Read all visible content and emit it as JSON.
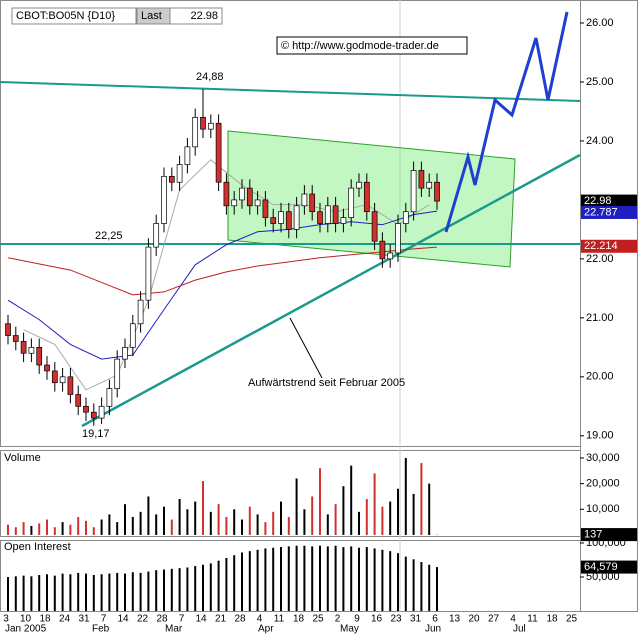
{
  "chart_data": [
    {
      "type": "candlestick",
      "symbol": "CBOT:BO05N {D10}",
      "last_label": "Last",
      "last_value": 22.98,
      "source": "© http://www.godmode-trader.de",
      "annotations": [
        "24,88",
        "22,25",
        "19,17",
        "Aufwärtstrend seit Februar 2005"
      ],
      "open": [
        20.9,
        20.7,
        20.6,
        20.4,
        20.5,
        20.2,
        20.1,
        19.9,
        20.0,
        19.7,
        19.5,
        19.4,
        19.3,
        19.5,
        19.8,
        20.3,
        20.5,
        20.9,
        21.3,
        22.2,
        22.6,
        23.4,
        23.3,
        23.6,
        23.9,
        24.4,
        24.2,
        24.3,
        23.3,
        22.9,
        23.0,
        23.2,
        22.9,
        23.0,
        22.7,
        22.6,
        22.8,
        22.5,
        22.9,
        23.1,
        22.8,
        22.6,
        22.9,
        22.6,
        22.7,
        23.2,
        23.3,
        22.8,
        22.3,
        22.0,
        22.1,
        22.6,
        22.8,
        23.5,
        23.2,
        23.3
      ],
      "high": [
        21.05,
        20.85,
        20.75,
        20.65,
        20.65,
        20.35,
        20.25,
        20.15,
        20.15,
        19.85,
        19.65,
        19.55,
        19.65,
        19.95,
        20.45,
        20.65,
        21.05,
        21.45,
        22.35,
        22.75,
        23.55,
        23.55,
        23.75,
        24.05,
        24.55,
        24.88,
        24.45,
        24.45,
        23.45,
        23.15,
        23.35,
        23.35,
        23.15,
        23.15,
        22.85,
        22.95,
        22.95,
        23.05,
        23.25,
        23.25,
        22.95,
        23.05,
        23.05,
        22.85,
        23.35,
        23.45,
        23.45,
        22.95,
        22.45,
        22.25,
        22.75,
        22.95,
        23.65,
        23.65,
        23.45,
        23.45
      ],
      "low": [
        20.55,
        20.45,
        20.25,
        20.25,
        20.05,
        19.95,
        19.75,
        19.75,
        19.55,
        19.35,
        19.25,
        19.17,
        19.2,
        19.35,
        19.65,
        20.15,
        20.35,
        20.75,
        21.15,
        22.05,
        22.45,
        23.15,
        23.15,
        23.45,
        23.75,
        24.05,
        24.05,
        23.15,
        22.75,
        22.75,
        22.85,
        22.75,
        22.75,
        22.55,
        22.45,
        22.45,
        22.35,
        22.35,
        22.75,
        22.65,
        22.45,
        22.45,
        22.45,
        22.45,
        22.55,
        23.05,
        22.65,
        22.15,
        21.85,
        21.85,
        21.95,
        22.45,
        22.65,
        23.05,
        23.05,
        22.83
      ],
      "close": [
        20.7,
        20.6,
        20.4,
        20.5,
        20.2,
        20.1,
        19.9,
        20.0,
        19.7,
        19.5,
        19.4,
        19.3,
        19.5,
        19.8,
        20.3,
        20.5,
        20.9,
        21.3,
        22.2,
        22.6,
        23.4,
        23.3,
        23.6,
        23.9,
        24.4,
        24.2,
        24.3,
        23.3,
        22.9,
        23.0,
        23.2,
        22.9,
        23.0,
        22.7,
        22.6,
        22.8,
        22.5,
        22.9,
        23.1,
        22.8,
        22.6,
        22.9,
        22.6,
        22.7,
        23.2,
        23.3,
        22.8,
        22.3,
        22.0,
        22.1,
        22.6,
        22.8,
        23.5,
        23.2,
        23.3,
        22.98
      ],
      "up_color": "#ffffff",
      "down_color": "#d03030",
      "moving_averages": [
        {
          "color": "#aaaaaa",
          "x": [
            2,
            6,
            10,
            14,
            18,
            22,
            26,
            30,
            34,
            38,
            42,
            46,
            50,
            54
          ],
          "values": [
            20.8,
            20.55,
            19.78,
            20.03,
            21.3,
            23.17,
            23.68,
            23.25,
            22.92,
            22.92,
            22.8,
            22.92,
            22.58,
            22.92
          ]
        },
        {
          "color": "#2020c0",
          "x": [
            0,
            4,
            8,
            12,
            16,
            20,
            24,
            28,
            32,
            36,
            40,
            44,
            48,
            52,
            55
          ],
          "values": [
            21.3,
            20.97,
            20.55,
            20.3,
            20.37,
            21.14,
            21.9,
            22.24,
            22.46,
            22.5,
            22.58,
            22.63,
            22.58,
            22.75,
            22.81
          ]
        },
        {
          "color": "#c02020",
          "x": [
            0,
            8,
            12,
            16,
            20,
            24,
            28,
            32,
            36,
            40,
            44,
            48,
            52,
            55
          ],
          "values": [
            22.02,
            21.81,
            21.6,
            21.39,
            21.44,
            21.64,
            21.78,
            21.88,
            21.95,
            22.02,
            22.07,
            22.12,
            22.17,
            22.2
          ]
        }
      ],
      "value_boxes": [
        {
          "value": 22.98,
          "color": "#000000"
        },
        {
          "value": 22.787,
          "color": "#2020c0"
        },
        {
          "value": 22.214,
          "color": "#c02020"
        }
      ],
      "ylim": [
        18.81,
        26.39
      ],
      "yticks": [
        {
          "value": 26,
          "label": "26.00"
        },
        {
          "value": 25,
          "label": "25.00"
        },
        {
          "value": 24,
          "label": "24.00"
        },
        {
          "value": 22,
          "label": "22.00"
        },
        {
          "value": 21,
          "label": "21.00"
        },
        {
          "value": 20,
          "label": "20.00"
        },
        {
          "value": 19,
          "label": "19.00"
        }
      ]
    },
    {
      "type": "bar",
      "title": "Volume",
      "values": [
        4000,
        3000,
        5000,
        3500,
        4500,
        6000,
        3000,
        5000,
        4000,
        7000,
        5500,
        3000,
        6000,
        8000,
        5000,
        12000,
        7000,
        9000,
        15000,
        8000,
        11000,
        6000,
        14000,
        10000,
        13000,
        21000,
        9000,
        12000,
        7000,
        10000,
        6000,
        11000,
        8000,
        5000,
        9000,
        13000,
        7000,
        22000,
        10000,
        15000,
        26000,
        8000,
        12000,
        19000,
        27000,
        9000,
        14000,
        24000,
        11000,
        13000,
        18000,
        30000,
        16000,
        28000,
        20000,
        137
      ],
      "value_boxes": [
        {
          "value": 137,
          "color": "#000000"
        }
      ],
      "ylim": [
        -800,
        33100
      ],
      "yticks": [
        {
          "value": 30000,
          "label": "30,000"
        },
        {
          "value": 20000,
          "label": "20,000"
        },
        {
          "value": 10000,
          "label": "10,000"
        }
      ]
    },
    {
      "type": "bar",
      "title": "Open Interest",
      "color": "#000000",
      "values": [
        50000,
        51000,
        52000,
        51000,
        53000,
        54000,
        52000,
        55000,
        54000,
        56000,
        55000,
        53000,
        54000,
        55000,
        56000,
        55000,
        57000,
        56000,
        58000,
        60000,
        61000,
        62000,
        63000,
        64000,
        66000,
        68000,
        70000,
        74000,
        78000,
        82000,
        86000,
        88000,
        90000,
        92000,
        93000,
        94000,
        95000,
        96000,
        96000,
        95000,
        96000,
        95000,
        96000,
        94000,
        95000,
        93000,
        94000,
        92000,
        90000,
        88000,
        85000,
        80000,
        76000,
        72000,
        68000,
        64579
      ],
      "value_boxes": [
        {
          "value": 64579,
          "label": "64,579",
          "color": "#000000"
        }
      ],
      "ylim": [
        0,
        104400
      ],
      "yticks": [
        {
          "value": 100000,
          "label": "100,000"
        },
        {
          "value": 50000,
          "label": "50,000"
        }
      ],
      "x_labels": [
        "3",
        "10",
        "18",
        "24",
        "31",
        "7",
        "14",
        "22",
        "28",
        "7",
        "14",
        "21",
        "28",
        "4",
        "11",
        "18",
        "25",
        "2",
        "9",
        "16",
        "23",
        "31",
        "6",
        "13",
        "20",
        "27",
        "4",
        "11",
        "18",
        "25"
      ],
      "month_labels": [
        "Jan 2005",
        "Feb",
        "Mar",
        "Apr",
        "May",
        "Jun",
        "Jul"
      ]
    }
  ]
}
